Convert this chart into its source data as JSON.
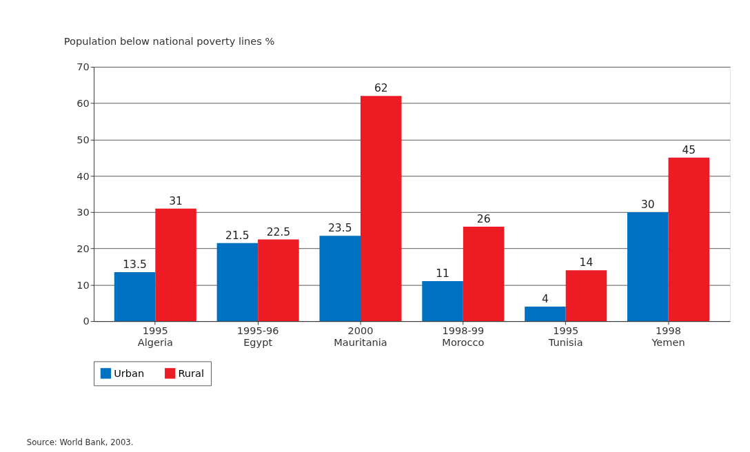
{
  "chart_data": {
    "type": "bar",
    "ylabel": "Population below national poverty lines %",
    "categories": [
      "1995\nAlgeria",
      "1995-96\nEgypt",
      "2000\nMauritania",
      "1998-99\nMorocco",
      "1995\nTunisia",
      "1998\nYemen"
    ],
    "series": [
      {
        "name": "Urban",
        "color": "#0070c0",
        "values": [
          13.5,
          21.5,
          23.5,
          11,
          4,
          30
        ]
      },
      {
        "name": "Rural",
        "color": "#ed1c24",
        "values": [
          31,
          22.5,
          62,
          26,
          14,
          45
        ]
      }
    ],
    "ylim": [
      0,
      70
    ],
    "yticks": [
      0,
      10,
      20,
      30,
      40,
      50,
      60,
      70
    ],
    "grid": "y",
    "legend": "bottom left",
    "data_labels": true,
    "annotations": [
      "Source: World Bank, 2003."
    ]
  }
}
